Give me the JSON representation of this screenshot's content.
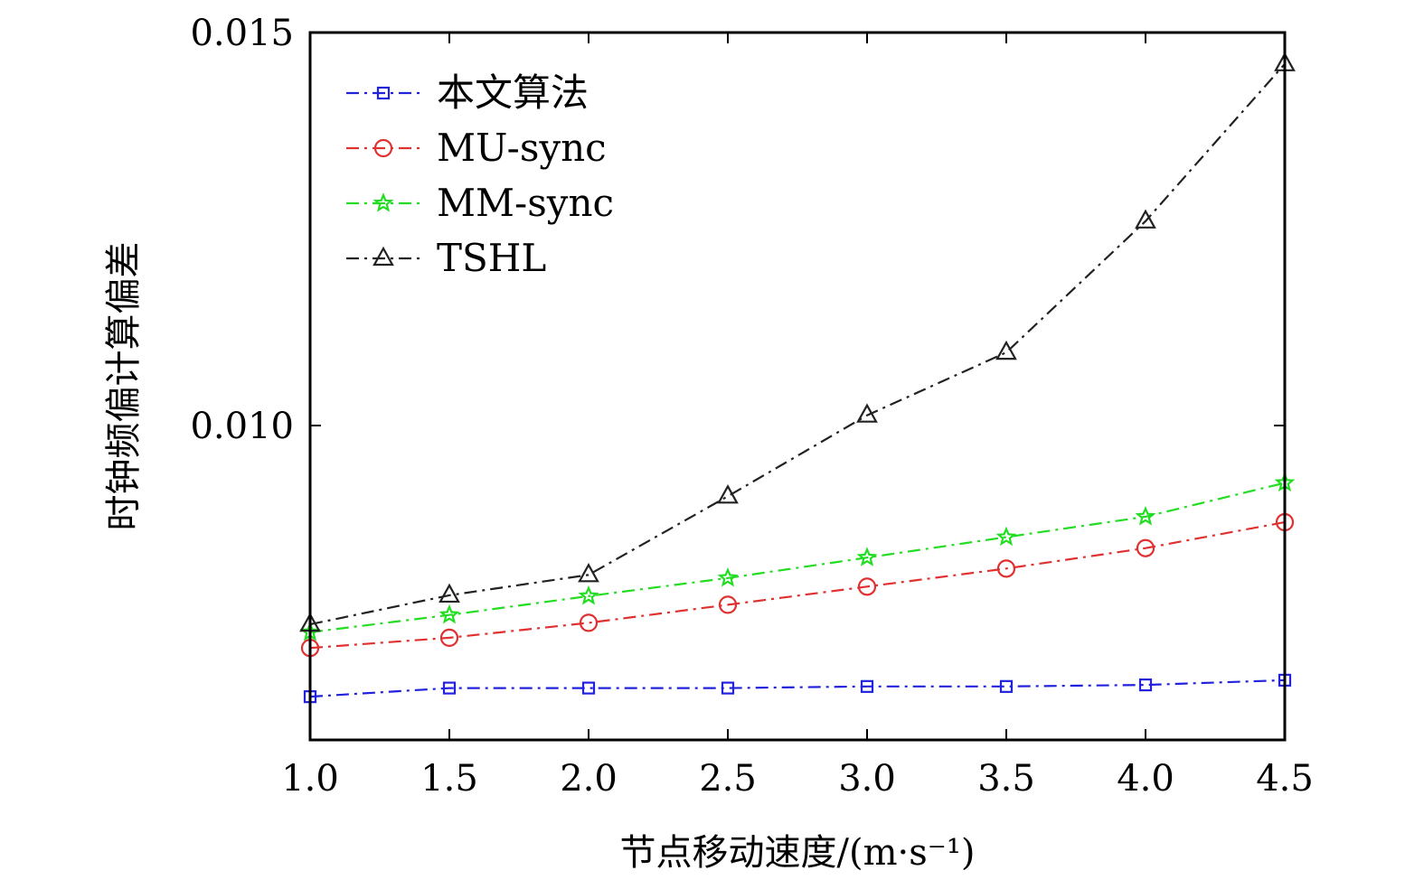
{
  "chart_data": {
    "type": "line",
    "title": "",
    "xlabel": "节点移动速度/(m·s⁻¹)",
    "ylabel": "时钟频偏计算偏差",
    "xlim": [
      1.0,
      4.5
    ],
    "ylim": [
      0.006,
      0.015
    ],
    "x": [
      1.0,
      1.5,
      2.0,
      2.5,
      3.0,
      3.5,
      4.0,
      4.5
    ],
    "x_tick_labels": [
      "1.0",
      "1.5",
      "2.0",
      "2.5",
      "3.0",
      "3.5",
      "4.0",
      "4.5"
    ],
    "y_ticks": [
      0.01,
      0.015
    ],
    "y_tick_labels": [
      "0.010",
      "0.015"
    ],
    "grid": false,
    "legend_position": "top-left",
    "series": [
      {
        "name": "本文算法",
        "color": "#2222dd",
        "marker": "square",
        "values": [
          0.00655,
          0.00666,
          0.00666,
          0.00666,
          0.00668,
          0.00668,
          0.0067,
          0.00676
        ]
      },
      {
        "name": "MU-sync",
        "color": "#e03030",
        "marker": "circle",
        "values": [
          0.00717,
          0.0073,
          0.00749,
          0.00772,
          0.00795,
          0.00818,
          0.00844,
          0.00877
        ]
      },
      {
        "name": "MM-sync",
        "color": "#22dd22",
        "marker": "star",
        "values": [
          0.00737,
          0.00759,
          0.00783,
          0.00806,
          0.00832,
          0.00858,
          0.00884,
          0.00927
        ]
      },
      {
        "name": "TSHL",
        "color": "#222222",
        "marker": "triangle",
        "values": [
          0.00747,
          0.00784,
          0.0081,
          0.0091,
          0.01013,
          0.01093,
          0.0126,
          0.0146
        ]
      }
    ]
  }
}
